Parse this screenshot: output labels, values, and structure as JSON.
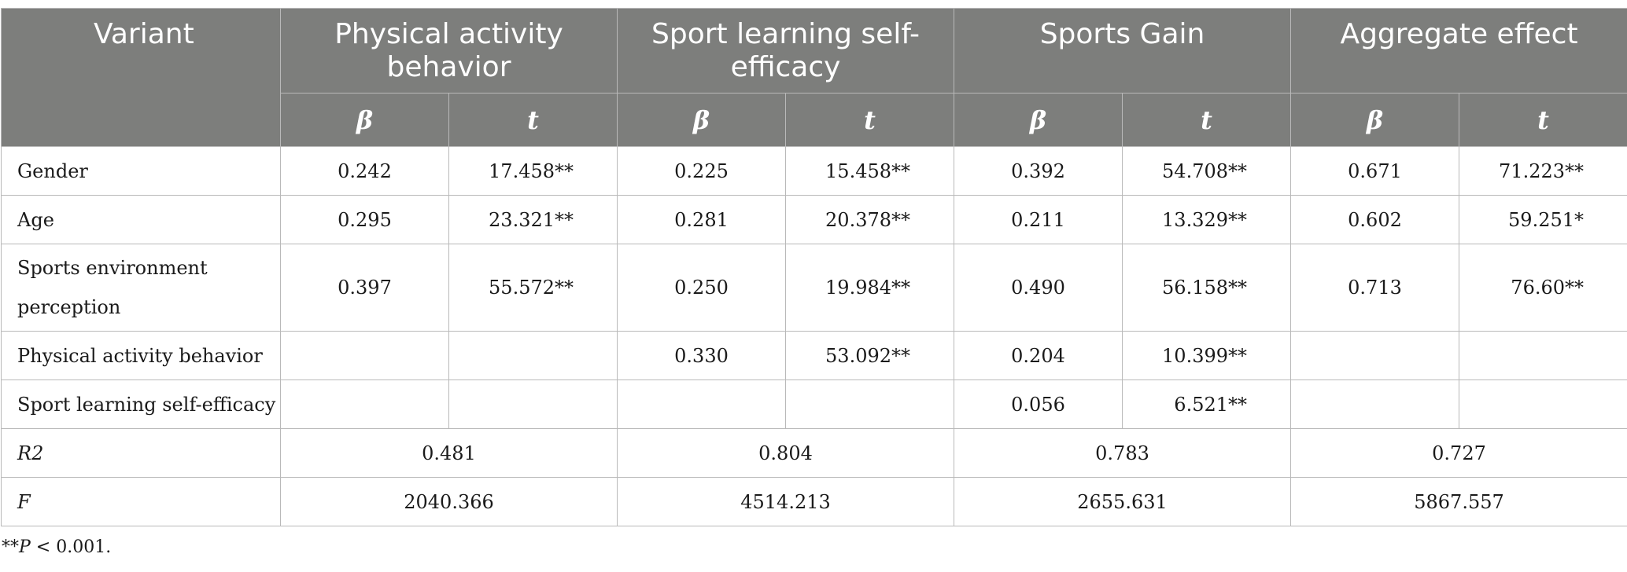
{
  "header": {
    "variant": "Variant",
    "groups": [
      "Physical activity behavior",
      "Sport learning self-efficacy",
      "Sports Gain",
      "Aggregate effect"
    ],
    "beta": "β",
    "t": "t"
  },
  "rows": [
    {
      "label": "Gender",
      "vals": [
        "0.242",
        "17.458**",
        "0.225",
        "15.458**",
        "0.392",
        "54.708**",
        "0.671",
        "71.223**"
      ]
    },
    {
      "label": "Age",
      "vals": [
        "0.295",
        "23.321**",
        "0.281",
        "20.378**",
        "0.211",
        "13.329**",
        "0.602",
        "59.251*"
      ]
    },
    {
      "label": "Sports environment perception",
      "vals": [
        "0.397",
        "55.572**",
        "0.250",
        "19.984**",
        "0.490",
        "56.158**",
        "0.713",
        "76.60**"
      ]
    },
    {
      "label": "Physical activity behavior",
      "vals": [
        "",
        "",
        "0.330",
        "53.092**",
        "0.204",
        "10.399**",
        "",
        ""
      ]
    },
    {
      "label": "Sport learning self-efficacy",
      "vals": [
        "",
        "",
        "",
        "",
        "0.056",
        "6.521**",
        "",
        ""
      ]
    }
  ],
  "r2": {
    "label": "R2",
    "vals": [
      "0.481",
      "0.804",
      "0.783",
      "0.727"
    ]
  },
  "f": {
    "label": "F",
    "vals": [
      "2040.366",
      "4514.213",
      "2655.631",
      "5867.557"
    ]
  },
  "footnote": {
    "prefix": "**",
    "p": "P",
    "rest": " < 0.001."
  }
}
